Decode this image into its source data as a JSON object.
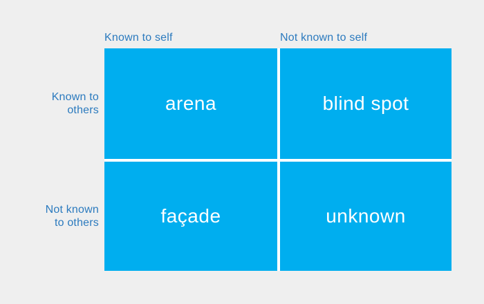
{
  "diagram": {
    "type": "johari-window",
    "column_headers": [
      {
        "label": "Known to self"
      },
      {
        "label": "Not known to self"
      }
    ],
    "row_headers": [
      {
        "line1": "Known to",
        "line2": "others"
      },
      {
        "line1": "Not known",
        "line2": "to others"
      }
    ],
    "quadrants": [
      {
        "label": "arena"
      },
      {
        "label": "blind spot"
      },
      {
        "label": "façade"
      },
      {
        "label": "unknown"
      }
    ],
    "colors": {
      "background": "#EFEFEF",
      "quadrant_fill": "#00AEEF",
      "quadrant_text": "#FFFFFF",
      "axis_label_text": "#2B7ABE",
      "grid_gap": "#FFFFFF"
    }
  }
}
